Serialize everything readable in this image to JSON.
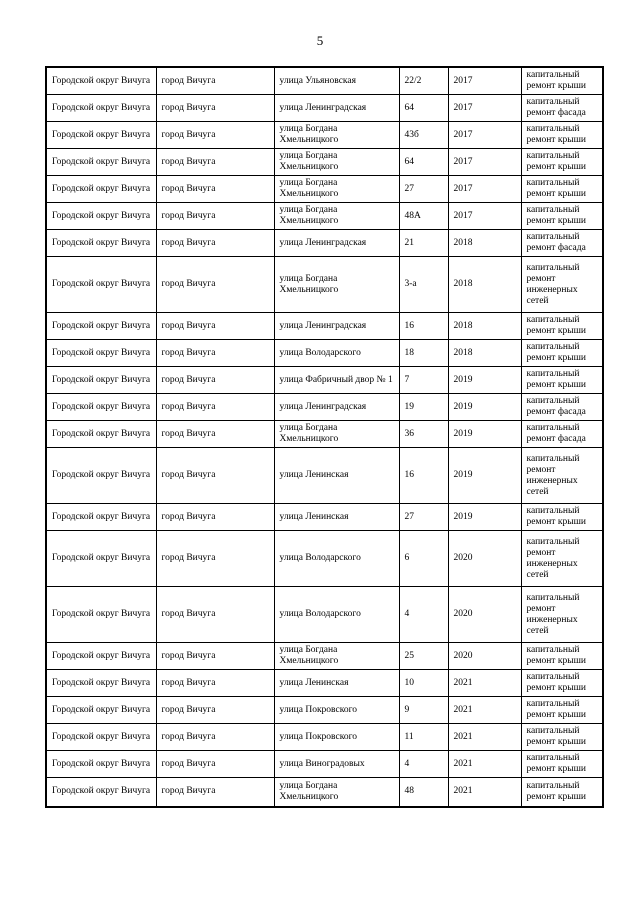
{
  "page": {
    "number": "5"
  },
  "table": {
    "column_keys": [
      "district",
      "city",
      "street",
      "house",
      "year",
      "work"
    ],
    "rows": [
      {
        "district": "Городской округ Вичуга",
        "city": "город Вичуга",
        "street": "улица Ульяновская",
        "house": "22/2",
        "year": "2017",
        "work": "капитальный ремонт крыши"
      },
      {
        "district": "Городской округ Вичуга",
        "city": "город Вичуга",
        "street": "улица Ленинградская",
        "house": "64",
        "year": "2017",
        "work": "капитальный ремонт фасада"
      },
      {
        "district": "Городской округ Вичуга",
        "city": "город Вичуга",
        "street": "улица Богдана Хмельницкого",
        "house": "43б",
        "year": "2017",
        "work": "капитальный ремонт крыши"
      },
      {
        "district": "Городской округ Вичуга",
        "city": "город Вичуга",
        "street": "улица Богдана Хмельницкого",
        "house": "64",
        "year": "2017",
        "work": "капитальный ремонт крыши"
      },
      {
        "district": "Городской округ Вичуга",
        "city": "город Вичуга",
        "street": "улица Богдана Хмельницкого",
        "house": "27",
        "year": "2017",
        "work": "капитальный ремонт крыши"
      },
      {
        "district": "Городской округ Вичуга",
        "city": "город Вичуга",
        "street": "улица Богдана Хмельницкого",
        "house": "48А",
        "year": "2017",
        "work": "капитальный ремонт крыши"
      },
      {
        "district": "Городской округ Вичуга",
        "city": "город Вичуга",
        "street": "улица Ленинградская",
        "house": "21",
        "year": "2018",
        "work": "капитальный ремонт фасада"
      },
      {
        "district": "Городской округ Вичуга",
        "city": "город Вичуга",
        "street": "улица Богдана Хмельницкого",
        "house": "3-а",
        "year": "2018",
        "work": "капитальный ремонт инженерных сетей"
      },
      {
        "district": "Городской округ Вичуга",
        "city": "город Вичуга",
        "street": "улица Ленинградская",
        "house": "16",
        "year": "2018",
        "work": "капитальный ремонт крыши"
      },
      {
        "district": "Городской округ Вичуга",
        "city": "город Вичуга",
        "street": "улица Володарского",
        "house": "18",
        "year": "2018",
        "work": "капитальный ремонт крыши"
      },
      {
        "district": "Городской округ Вичуга",
        "city": "город Вичуга",
        "street": "улица Фабричный двор № 1",
        "house": "7",
        "year": "2019",
        "work": "капитальный ремонт крыши"
      },
      {
        "district": "Городской округ Вичуга",
        "city": "город Вичуга",
        "street": "улица Ленинградская",
        "house": "19",
        "year": "2019",
        "work": "капитальный ремонт фасада"
      },
      {
        "district": "Городской округ Вичуга",
        "city": "город Вичуга",
        "street": "улица Богдана Хмельницкого",
        "house": "36",
        "year": "2019",
        "work": "капитальный ремонт фасада"
      },
      {
        "district": "Городской округ Вичуга",
        "city": "город Вичуга",
        "street": "улица Ленинская",
        "house": "16",
        "year": "2019",
        "work": "капитальный ремонт инженерных сетей"
      },
      {
        "district": "Городской округ Вичуга",
        "city": "город Вичуга",
        "street": "улица Ленинская",
        "house": "27",
        "year": "2019",
        "work": "капитальный ремонт крыши"
      },
      {
        "district": "Городской округ Вичуга",
        "city": "город Вичуга",
        "street": "улица Володарского",
        "house": "6",
        "year": "2020",
        "work": "капитальный ремонт инженерных сетей"
      },
      {
        "district": "Городской округ Вичуга",
        "city": "город Вичуга",
        "street": "улица Володарского",
        "house": "4",
        "year": "2020",
        "work": "капитальный ремонт инженерных сетей"
      },
      {
        "district": "Городской округ Вичуга",
        "city": "город Вичуга",
        "street": "улица Богдана Хмельницкого",
        "house": "25",
        "year": "2020",
        "work": "капитальный ремонт крыши"
      },
      {
        "district": "Городской округ Вичуга",
        "city": "город Вичуга",
        "street": "улица Ленинская",
        "house": "10",
        "year": "2021",
        "work": "капитальный ремонт крыши"
      },
      {
        "district": "Городской округ Вичуга",
        "city": "город Вичуга",
        "street": "улица Покровского",
        "house": "9",
        "year": "2021",
        "work": "капитальный ремонт крыши"
      },
      {
        "district": "Городской округ Вичуга",
        "city": "город Вичуга",
        "street": "улица Покровского",
        "house": "11",
        "year": "2021",
        "work": "капитальный ремонт крыши"
      },
      {
        "district": "Городской округ Вичуга",
        "city": "город Вичуга",
        "street": "улица Виноградовых",
        "house": "4",
        "year": "2021",
        "work": "капитальный ремонт крыши"
      },
      {
        "district": "Городской округ Вичуга",
        "city": "город Вичуга",
        "street": "улица Богдана Хмельницкого",
        "house": "48",
        "year": "2021",
        "work": "капитальный ремонт крыши"
      }
    ]
  },
  "colors": {
    "page_background": "#ffffff",
    "text": "#000000",
    "table_border": "#000000"
  }
}
